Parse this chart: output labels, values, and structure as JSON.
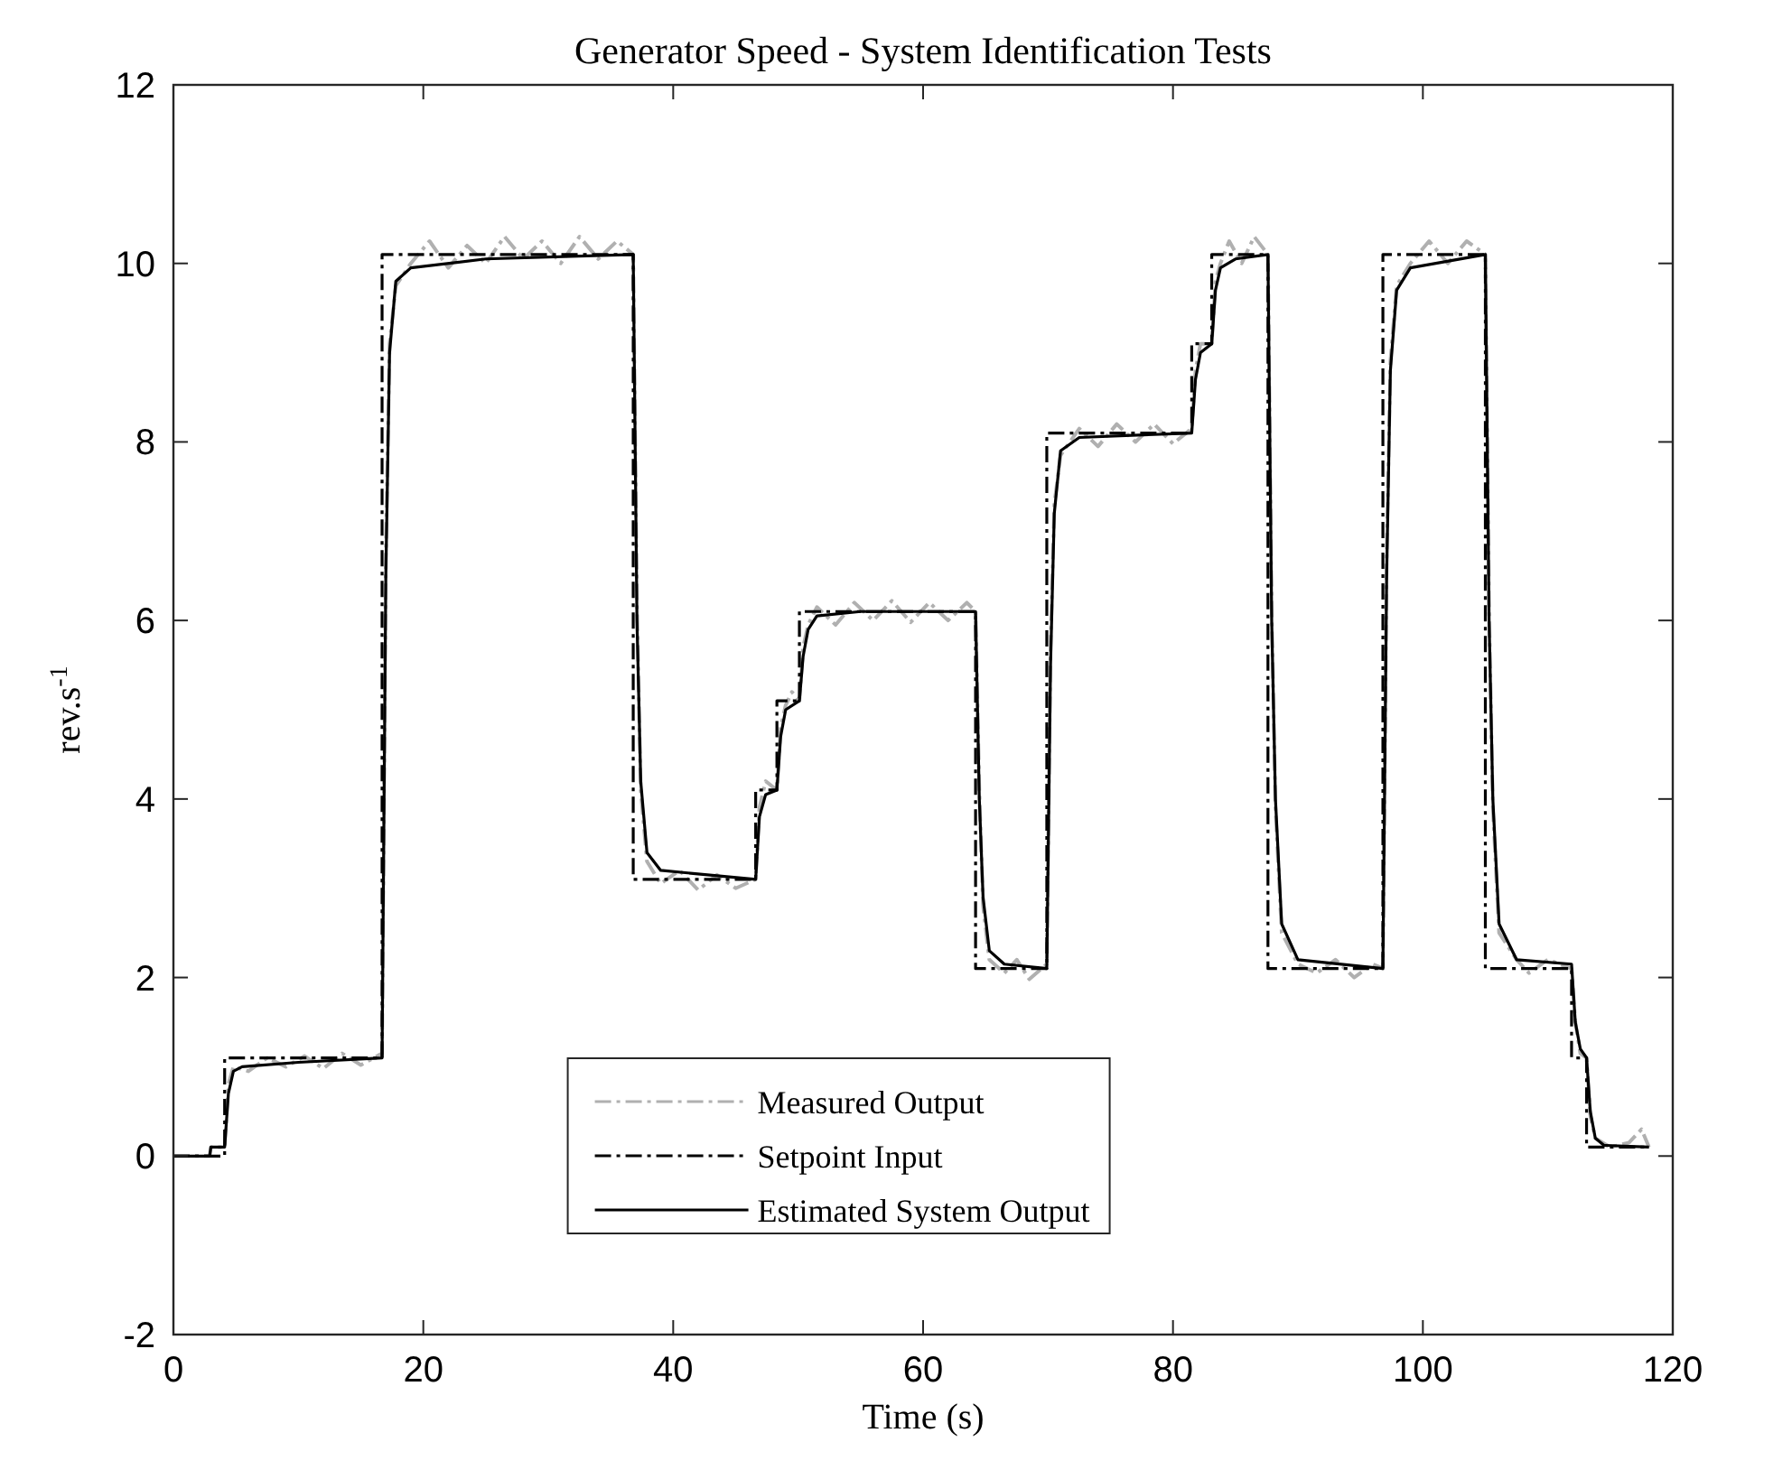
{
  "chart_data": {
    "type": "line",
    "title": "Generator Speed - System Identification Tests",
    "xlabel": "Time (s)",
    "ylabel": "rev.s$^{-1}$",
    "xlim": [
      0,
      120
    ],
    "xticks": [
      0,
      20,
      40,
      60,
      80,
      100,
      120
    ],
    "ylim": [
      -2,
      12
    ],
    "yticks": [
      -2,
      0,
      2,
      4,
      6,
      8,
      10,
      12
    ],
    "grid": false,
    "legend": "bottom",
    "marker": "none",
    "series": [
      {
        "name": "Measured Output",
        "color": "#b0b0b0",
        "line_style": "dashdot",
        "x": [
          0,
          2.9,
          3.0,
          4.1,
          4.4,
          4.8,
          6,
          7.5,
          9,
          10.5,
          12,
          13.5,
          15,
          16.7,
          17.0,
          17.3,
          17.8,
          19,
          20.5,
          22,
          23.5,
          25,
          26.5,
          28,
          29.5,
          31,
          32.5,
          34,
          35.5,
          36.8,
          37.1,
          37.4,
          37.9,
          39,
          40.5,
          42,
          43.5,
          45,
          46.6,
          46.9,
          47.4,
          48.3,
          48.6,
          49,
          49.5,
          50.1,
          50.4,
          50.8,
          51.5,
          53,
          54.5,
          56,
          57.5,
          59,
          60.5,
          62,
          63.5,
          64.2,
          64.5,
          64.8,
          65.3,
          66.5,
          67.5,
          68.5,
          69.9,
          70.2,
          70.5,
          71.0,
          72.5,
          74,
          75.5,
          77,
          78.5,
          80,
          81.5,
          81.8,
          82.2,
          83.1,
          83.4,
          83.8,
          84.5,
          85.5,
          86.5,
          87.6,
          87.9,
          88.2,
          88.7,
          90,
          91.5,
          93,
          94.5,
          96,
          96.8,
          97.1,
          97.4,
          97.9,
          99,
          100.5,
          102,
          103.5,
          105,
          105.3,
          105.6,
          106.1,
          107.5,
          108.5,
          110,
          111.9,
          112.2,
          112.6,
          113.1,
          113.4,
          113.8,
          115,
          116.5,
          117.5,
          118.1
        ],
        "values": [
          0,
          0,
          0.1,
          0.1,
          0.8,
          1.0,
          0.95,
          1.1,
          1.0,
          1.12,
          0.98,
          1.15,
          1.02,
          1.15,
          6.7,
          9.1,
          9.75,
          10.0,
          10.25,
          9.95,
          10.2,
          10.0,
          10.3,
          10.05,
          10.25,
          10.0,
          10.3,
          10.05,
          10.25,
          10.1,
          6.2,
          4.1,
          3.3,
          3.05,
          3.2,
          2.98,
          3.15,
          3.0,
          3.1,
          3.9,
          4.2,
          4.1,
          4.8,
          5.05,
          5.2,
          5.1,
          5.7,
          5.95,
          6.15,
          5.95,
          6.2,
          6.0,
          6.22,
          5.98,
          6.2,
          6.0,
          6.2,
          6.1,
          4.1,
          2.8,
          2.2,
          2.05,
          2.2,
          1.98,
          2.15,
          5.7,
          7.3,
          7.85,
          8.15,
          7.95,
          8.2,
          8.0,
          8.2,
          7.98,
          8.15,
          8.8,
          9.1,
          9.1,
          9.8,
          10.0,
          10.25,
          10.0,
          10.3,
          10.1,
          6.1,
          3.9,
          2.5,
          2.15,
          2.05,
          2.2,
          2.0,
          2.15,
          2.1,
          6.7,
          8.9,
          9.75,
          10.0,
          10.25,
          10.0,
          10.25,
          10.1,
          6.1,
          3.9,
          2.5,
          2.2,
          2.05,
          2.2,
          2.1,
          1.5,
          1.15,
          1.1,
          0.45,
          0.2,
          0.1,
          0.15,
          0.3,
          0.1
        ]
      },
      {
        "name": "Setpoint Input",
        "color": "#000000",
        "type": "step",
        "line_style": "dashdot",
        "x": [
          0,
          4.1,
          16.7,
          36.8,
          46.6,
          48.3,
          50.1,
          64.2,
          69.9,
          81.5,
          83.1,
          87.6,
          96.8,
          105.0,
          111.9,
          113.1,
          118.1
        ],
        "values": [
          0,
          1.1,
          10.1,
          3.1,
          4.1,
          5.1,
          6.1,
          2.1,
          8.1,
          9.1,
          10.1,
          2.1,
          10.1,
          2.1,
          1.1,
          0.1,
          0.1
        ]
      },
      {
        "name": "Estimated System Output",
        "color": "#000000",
        "line_style": "solid",
        "x": [
          0,
          2.9,
          3.0,
          4.1,
          4.4,
          4.8,
          5.5,
          10,
          16.7,
          17.0,
          17.3,
          17.8,
          19,
          25,
          36.8,
          37.1,
          37.4,
          37.9,
          39,
          46.6,
          46.9,
          47.4,
          48.3,
          48.6,
          49,
          50.1,
          50.4,
          50.8,
          51.5,
          55,
          64.2,
          64.5,
          64.8,
          65.3,
          66.5,
          69.9,
          70.2,
          70.5,
          71.0,
          72.5,
          81.5,
          81.8,
          82.2,
          83.1,
          83.4,
          83.8,
          85,
          87.6,
          87.9,
          88.2,
          88.7,
          90,
          96.8,
          97.1,
          97.4,
          97.9,
          99,
          105,
          105.3,
          105.6,
          106.1,
          107.5,
          111.9,
          112.2,
          112.6,
          113.1,
          113.4,
          113.8,
          114.5,
          118.1
        ],
        "values": [
          0,
          0,
          0.1,
          0.1,
          0.7,
          0.95,
          1.0,
          1.05,
          1.1,
          6.5,
          9.0,
          9.8,
          9.95,
          10.05,
          10.1,
          6,
          4.2,
          3.4,
          3.2,
          3.1,
          3.8,
          4.05,
          4.1,
          4.7,
          5.0,
          5.1,
          5.6,
          5.9,
          6.05,
          6.1,
          6.1,
          4.0,
          2.9,
          2.3,
          2.15,
          2.1,
          5.5,
          7.2,
          7.9,
          8.05,
          8.1,
          8.7,
          9.0,
          9.1,
          9.7,
          9.95,
          10.05,
          10.1,
          6,
          4.0,
          2.6,
          2.2,
          2.1,
          6.5,
          8.8,
          9.7,
          9.95,
          10.1,
          6,
          4,
          2.6,
          2.2,
          2.15,
          1.5,
          1.2,
          1.1,
          0.5,
          0.2,
          0.12,
          0.1
        ]
      }
    ]
  }
}
